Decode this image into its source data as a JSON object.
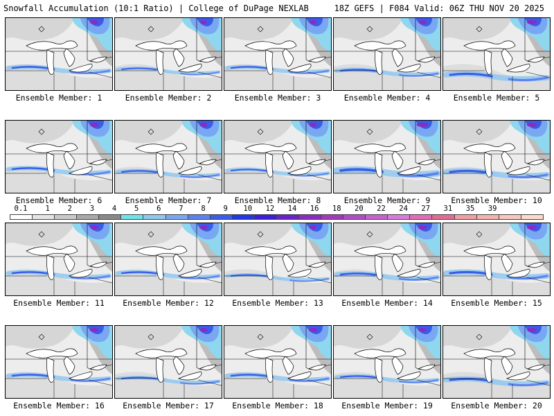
{
  "header": {
    "left": "Snowfall Accumulation (10:1 Ratio) | College of DuPage NEXLAB",
    "right": "18Z GEFS | F084 Valid: 06Z THU NOV 20 2025"
  },
  "members": [
    {
      "label": "Ensemble Member: 1",
      "intensity": 0.5,
      "band_offset": 0
    },
    {
      "label": "Ensemble Member: 2",
      "intensity": 0.3,
      "band_offset": 2
    },
    {
      "label": "Ensemble Member: 3",
      "intensity": 0.4,
      "band_offset": 0
    },
    {
      "label": "Ensemble Member: 4",
      "intensity": 0.45,
      "band_offset": 4
    },
    {
      "label": "Ensemble Member: 5",
      "intensity": 0.7,
      "band_offset": 10
    },
    {
      "label": "Ensemble Member: 6",
      "intensity": 0.5,
      "band_offset": -2
    },
    {
      "label": "Ensemble Member: 7",
      "intensity": 0.4,
      "band_offset": 2
    },
    {
      "label": "Ensemble Member: 8",
      "intensity": 0.35,
      "band_offset": 0
    },
    {
      "label": "Ensemble Member: 9",
      "intensity": 0.9,
      "band_offset": 0
    },
    {
      "label": "Ensemble Member: 10",
      "intensity": 0.7,
      "band_offset": 2
    },
    {
      "label": "Ensemble Member: 11",
      "intensity": 0.5,
      "band_offset": 0
    },
    {
      "label": "Ensemble Member: 12",
      "intensity": 0.45,
      "band_offset": 0
    },
    {
      "label": "Ensemble Member: 13",
      "intensity": 0.3,
      "band_offset": 4
    },
    {
      "label": "Ensemble Member: 14",
      "intensity": 0.55,
      "band_offset": 2
    },
    {
      "label": "Ensemble Member: 15",
      "intensity": 0.7,
      "band_offset": 0
    },
    {
      "label": "Ensemble Member: 16",
      "intensity": 0.5,
      "band_offset": 0
    },
    {
      "label": "Ensemble Member: 17",
      "intensity": 0.35,
      "band_offset": 4
    },
    {
      "label": "Ensemble Member: 18",
      "intensity": 0.5,
      "band_offset": 0
    },
    {
      "label": "Ensemble Member: 19",
      "intensity": 0.4,
      "band_offset": 2
    },
    {
      "label": "Ensemble Member: 20",
      "intensity": 0.65,
      "band_offset": 6
    }
  ],
  "colorbar": {
    "labels": [
      "0.1",
      "1",
      "2",
      "3",
      "4",
      "5",
      "6",
      "7",
      "8",
      "9",
      "10",
      "12",
      "14",
      "16",
      "18",
      "20",
      "22",
      "24",
      "27",
      "31",
      "35",
      "39"
    ],
    "colors": [
      "#ffffff",
      "#e4e4e4",
      "#c8c8c8",
      "#a8a8a8",
      "#888888",
      "#6fe3e9",
      "#8fc7ef",
      "#79a7f1",
      "#5d82ef",
      "#3a5ce8",
      "#2238e4",
      "#3e1ed8",
      "#6a22c9",
      "#8a2cc0",
      "#a13ab8",
      "#b24cc4",
      "#c562cf",
      "#d77cd8",
      "#e16eb4",
      "#e06b95",
      "#f09fa0",
      "#f3b3ae",
      "#f6c7bd",
      "#f9dacd"
    ]
  }
}
